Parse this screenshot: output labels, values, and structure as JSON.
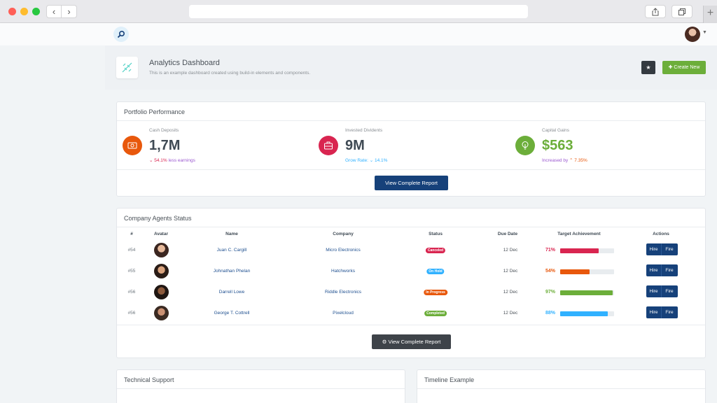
{
  "browser": {
    "back": "‹",
    "forward": "›",
    "new_tab": "+"
  },
  "page": {
    "title": "Analytics Dashboard",
    "subtitle": "This is an example dashboard created using build-in elements and components.",
    "create_label": "Create New"
  },
  "portfolio": {
    "header": "Portfolio Performance",
    "widgets": [
      {
        "label": "Cash Deposits",
        "value": "1,7M",
        "trend_value": "54.1%",
        "trend_text": "less earnings",
        "icon": "cash-icon",
        "icon_color": "#e8580c"
      },
      {
        "label": "Invested Dividents",
        "value": "9M",
        "trend_text": "Grow Rate:",
        "trend_value": "14.1%",
        "icon": "briefcase-icon",
        "icon_color": "#d92550"
      },
      {
        "label": "Capital Gains",
        "value": "$563",
        "trend_text": "Increased by",
        "trend_value": "7.35%",
        "icon": "lightbulb-icon",
        "icon_color": "#6cae3a"
      }
    ],
    "report_label": "View Complete Report"
  },
  "agents": {
    "header": "Company Agents Status",
    "columns": [
      "#",
      "Avatar",
      "Name",
      "Company",
      "Status",
      "Due Date",
      "Target Achievement",
      "Actions"
    ],
    "rows": [
      {
        "num": "#54",
        "name": "Juan C. Cargill",
        "company": "Micro Electronics",
        "status": "Canceled",
        "status_color": "#d92550",
        "due": "12 Dec",
        "pct": "71%",
        "pct_value": 71,
        "bar_color": "#d92550"
      },
      {
        "num": "#55",
        "name": "Johnathan Phelan",
        "company": "Hatchworks",
        "status": "On Hold",
        "status_color": "#30b1ff",
        "due": "12 Dec",
        "pct": "54%",
        "pct_value": 54,
        "bar_color": "#e8580c"
      },
      {
        "num": "#56",
        "name": "Darrell Lowe",
        "company": "Riddle Electronics",
        "status": "In Progress",
        "status_color": "#e8580c",
        "due": "12 Dec",
        "pct": "97%",
        "pct_value": 97,
        "bar_color": "#6cae3a"
      },
      {
        "num": "#56",
        "name": "George T. Cottrell",
        "company": "Pixelcloud",
        "status": "Completed",
        "status_color": "#6cae3a",
        "due": "12 Dec",
        "pct": "88%",
        "pct_value": 88,
        "bar_color": "#30b1ff"
      }
    ],
    "hire_label": "Hire",
    "fire_label": "Fire",
    "report_label": "View Complete Report"
  },
  "support": {
    "header": "Technical Support"
  },
  "timeline": {
    "header": "Timeline Example"
  }
}
